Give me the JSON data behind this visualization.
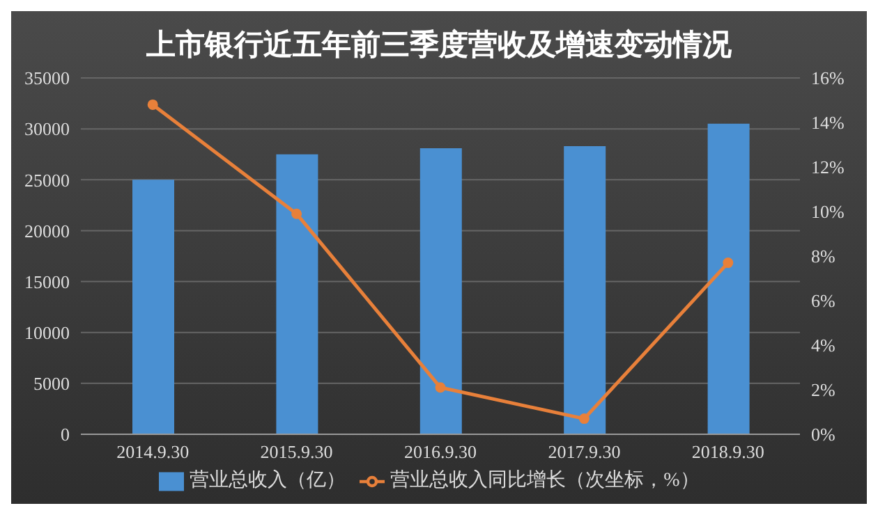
{
  "chart_data": {
    "type": "bar",
    "title": "上市银行近五年前三季度营收及增速变动情况",
    "categories": [
      "2014.9.30",
      "2015.9.30",
      "2016.9.30",
      "2017.9.30",
      "2018.9.30"
    ],
    "series": [
      {
        "name": "营业总收入（亿）",
        "color": "#4a90d2",
        "values": [
          25000,
          27500,
          28100,
          28300,
          30500
        ]
      },
      {
        "name": "营业总收入同比增长（次坐标，%）",
        "type": "line",
        "axis": "y2",
        "color": "#e8803a",
        "marker": "circle",
        "values": [
          14.8,
          9.9,
          2.1,
          0.7,
          7.7
        ]
      }
    ],
    "ylim": [
      0,
      35000
    ],
    "yticks": [
      0,
      5000,
      10000,
      15000,
      20000,
      25000,
      30000,
      35000
    ],
    "y2lim": [
      0,
      16
    ],
    "y2ticks": [
      {
        "value": 0,
        "label": "0%"
      },
      {
        "value": 2,
        "label": "2%"
      },
      {
        "value": 4,
        "label": "4%"
      },
      {
        "value": 6,
        "label": "6%"
      },
      {
        "value": 8,
        "label": "8%"
      },
      {
        "value": 10,
        "label": "10%"
      },
      {
        "value": 12,
        "label": "12%"
      },
      {
        "value": 14,
        "label": "14%"
      },
      {
        "value": 16,
        "label": "16%"
      }
    ],
    "grid": "y",
    "legend": "bottom"
  }
}
